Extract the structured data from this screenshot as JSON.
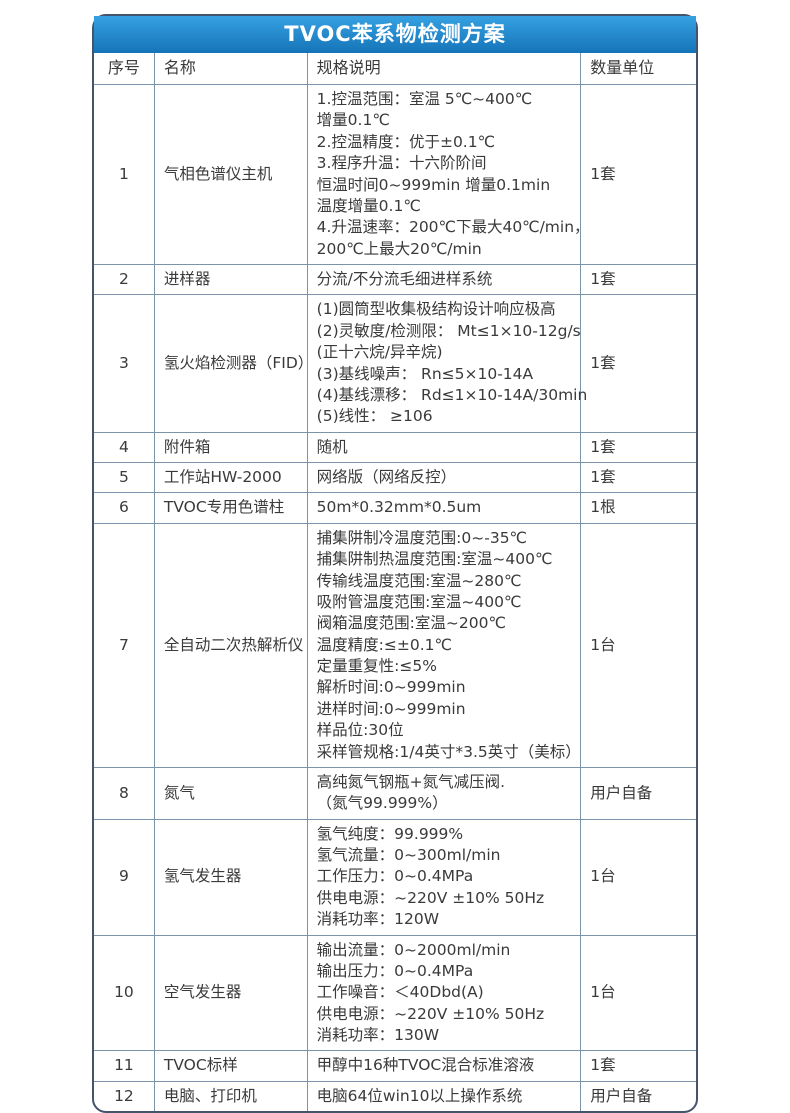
{
  "title": "TVOC苯系物检测方案",
  "colors": {
    "header_gradient_top": "#36a1e2",
    "header_gradient_bottom": "#1574b8",
    "outer_border": "#44546a",
    "grid_line": "#7b94aa",
    "text": "#3a3a3a",
    "title_text": "#ffffff"
  },
  "table": {
    "columns": [
      "序号",
      "名称",
      "规格说明",
      "数量单位"
    ],
    "rows": [
      {
        "no": "1",
        "name": "气相色谱仪主机",
        "spec": [
          "1.控温范围：室温 5℃~400℃",
          "增量0.1℃",
          "2.控温精度：优于±0.1℃",
          "3.程序升温：十六阶阶间",
          "恒温时间0~999min 增量0.1min",
          "温度增量0.1℃",
          "4.升温速率：200℃下最大40℃/min，",
          "200℃上最大20℃/min"
        ],
        "qty": "1套"
      },
      {
        "no": "2",
        "name": "进样器",
        "spec": [
          "分流/不分流毛细进样系统"
        ],
        "qty": "1套"
      },
      {
        "no": "3",
        "name": "氢火焰检测器（FID）",
        "spec": [
          "(1)圆筒型收集极结构设计响应极高",
          "(2)灵敏度/检测限： Mt≤1×10-12g/s",
          "(正十六烷/异辛烷)",
          "(3)基线噪声： Rn≤5×10-14A",
          "(4)基线漂移： Rd≤1×10-14A/30min",
          "(5)线性： ≥106"
        ],
        "qty": "1套"
      },
      {
        "no": "4",
        "name": "附件箱",
        "spec": [
          "随机"
        ],
        "qty": "1套"
      },
      {
        "no": "5",
        "name": "工作站HW-2000",
        "spec": [
          "网络版（网络反控）"
        ],
        "qty": "1套"
      },
      {
        "no": "6",
        "name": "TVOC专用色谱柱",
        "spec": [
          "50m*0.32mm*0.5um"
        ],
        "qty": "1根"
      },
      {
        "no": "7",
        "name": "全自动二次热解析仪",
        "spec": [
          "捕集阱制冷温度范围:0~-35℃",
          "捕集阱制热温度范围:室温~400℃",
          "传输线温度范围:室温~280℃",
          "吸附管温度范围:室温~400℃",
          "阀箱温度范围:室温~200℃",
          "温度精度:≤±0.1℃",
          "定量重复性:≤5%",
          "解析时间:0~999min",
          "进样时间:0~999min",
          "样品位:30位",
          "采样管规格:1/4英寸*3.5英寸（美标）"
        ],
        "qty": "1台"
      },
      {
        "no": "8",
        "name": "氮气",
        "spec": [
          "高纯氮气钢瓶+氮气减压阀.",
          "（氮气99.999%）"
        ],
        "qty": "用户自备"
      },
      {
        "no": "9",
        "name": "氢气发生器",
        "spec": [
          "氢气纯度：99.999%",
          "氢气流量：0~300ml/min",
          "工作压力：0~0.4MPa",
          "供电电源：~220V ±10% 50Hz",
          "消耗功率：120W"
        ],
        "qty": "1台"
      },
      {
        "no": "10",
        "name": "空气发生器",
        "spec": [
          "输出流量：0~2000ml/min",
          "输出压力：0~0.4MPa",
          "工作噪音：＜40Dbd(A)",
          "供电电源：~220V ±10% 50Hz",
          "消耗功率：130W"
        ],
        "qty": "1台"
      },
      {
        "no": "11",
        "name": "TVOC标样",
        "spec": [
          "甲醇中16种TVOC混合标准溶液"
        ],
        "qty": "1套"
      },
      {
        "no": "12",
        "name": "电脑、打印机",
        "spec": [
          "电脑64位win10以上操作系统"
        ],
        "qty": "用户自备"
      }
    ]
  }
}
